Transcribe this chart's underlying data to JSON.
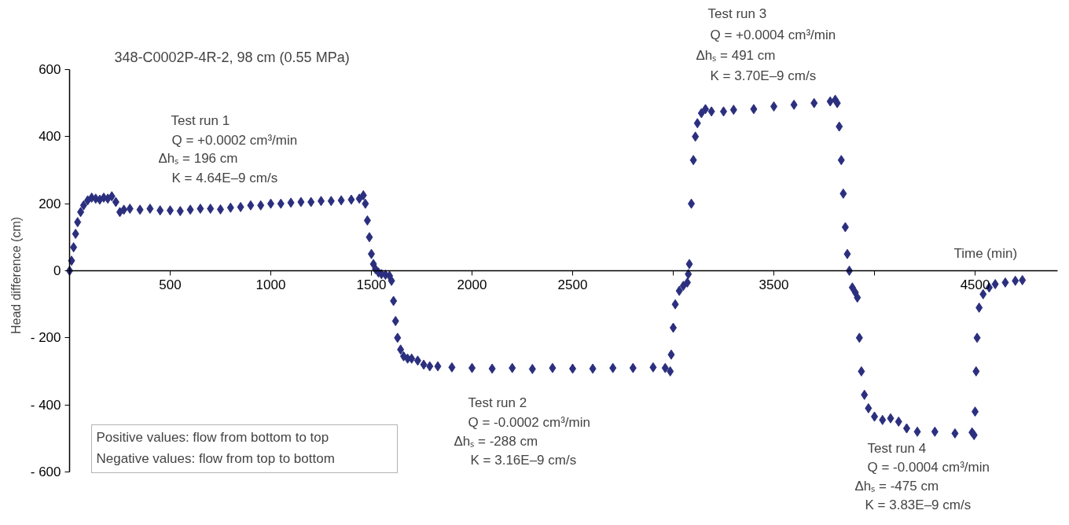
{
  "chart_data": {
    "type": "scatter",
    "title": "348-C0002P-4R-2, 98 cm (0.55 MPa)",
    "xlabel": "Time (min)",
    "ylabel": "Head difference (cm)",
    "marker": "diamond",
    "xlim": [
      0,
      4910
    ],
    "ylim": [
      -600,
      600
    ],
    "xticks": [
      500,
      1000,
      1500,
      2000,
      2500,
      {
        "value": 3000,
        "label": null
      },
      3500,
      {
        "value": 4000,
        "label": null
      },
      4500
    ],
    "yticks": [
      600,
      400,
      200,
      0,
      {
        "value": -200,
        "label": "- 200"
      },
      {
        "value": -400,
        "label": "- 400"
      },
      {
        "value": -600,
        "label": "- 600"
      }
    ],
    "annotations": [
      "Test run 1",
      "Q = +0.0002 cm³/min",
      "Δhₛ = 196 cm",
      "K = 4.64E–9 cm/s",
      "Test run 2",
      "Q = -0.0002 cm³/min",
      "Δhₛ = -288 cm",
      "K = 3.16E–9 cm/s",
      "Test run 3",
      "Q = +0.0004 cm³/min",
      "Δhₛ = 491 cm",
      "K = 3.70E–9 cm/s",
      "Test run 4",
      "Q = -0.0004 cm³/min",
      "Δhₛ = -475 cm",
      "K = 3.83E–9 cm/s",
      "Positive values: flow from bottom to top",
      "Negative values: flow from top to bottom"
    ],
    "series": [
      {
        "color": "#2b2f7e",
        "x": [
          0,
          10,
          20,
          30,
          40,
          55,
          70,
          90,
          110,
          130,
          150,
          170,
          190,
          210,
          230,
          250,
          270,
          300,
          350,
          400,
          450,
          500,
          550,
          600,
          650,
          700,
          750,
          800,
          850,
          900,
          950,
          1000,
          1050,
          1100,
          1150,
          1200,
          1250,
          1300,
          1350,
          1400,
          1440,
          1460,
          1470,
          1480,
          1490,
          1500,
          1510,
          1520,
          1535,
          1550,
          1570,
          1590,
          1600,
          1610,
          1620,
          1630,
          1645,
          1660,
          1680,
          1700,
          1730,
          1760,
          1790,
          1830,
          1900,
          2000,
          2100,
          2200,
          2300,
          2400,
          2500,
          2600,
          2700,
          2800,
          2900,
          2960,
          2985,
          2990,
          3000,
          3010,
          3030,
          3050,
          3070,
          3075,
          3080,
          3090,
          3100,
          3110,
          3120,
          3140,
          3160,
          3190,
          3250,
          3300,
          3400,
          3500,
          3600,
          3700,
          3780,
          3805,
          3815,
          3825,
          3835,
          3845,
          3855,
          3865,
          3875,
          3890,
          3905,
          3915,
          3925,
          3935,
          3950,
          3970,
          4000,
          4040,
          4080,
          4120,
          4160,
          4213,
          4300,
          4400,
          4485,
          4495,
          4500,
          4505,
          4510,
          4520,
          4540,
          4570,
          4600,
          4650,
          4700,
          4735
        ],
        "values": [
          0,
          30,
          70,
          110,
          145,
          175,
          195,
          210,
          218,
          215,
          212,
          218,
          215,
          222,
          205,
          175,
          182,
          185,
          182,
          185,
          180,
          180,
          178,
          182,
          185,
          185,
          183,
          188,
          190,
          195,
          195,
          200,
          200,
          203,
          205,
          205,
          208,
          208,
          210,
          212,
          215,
          225,
          200,
          150,
          100,
          50,
          20,
          5,
          -5,
          -10,
          -12,
          -15,
          -30,
          -90,
          -150,
          -200,
          -235,
          -255,
          -262,
          -262,
          -268,
          -280,
          -285,
          -285,
          -288,
          -290,
          -292,
          -290,
          -293,
          -290,
          -292,
          -292,
          -290,
          -290,
          -288,
          -290,
          -300,
          -250,
          -170,
          -100,
          -60,
          -45,
          -35,
          -10,
          20,
          200,
          330,
          400,
          440,
          470,
          482,
          475,
          475,
          480,
          482,
          490,
          495,
          500,
          505,
          510,
          500,
          430,
          330,
          230,
          130,
          50,
          0,
          -50,
          -65,
          -80,
          -200,
          -300,
          -370,
          -410,
          -435,
          -445,
          -440,
          -450,
          -470,
          -480,
          -480,
          -485,
          -482,
          -490,
          -420,
          -300,
          -200,
          -110,
          -70,
          -50,
          -40,
          -35,
          -30,
          -28
        ]
      }
    ]
  }
}
